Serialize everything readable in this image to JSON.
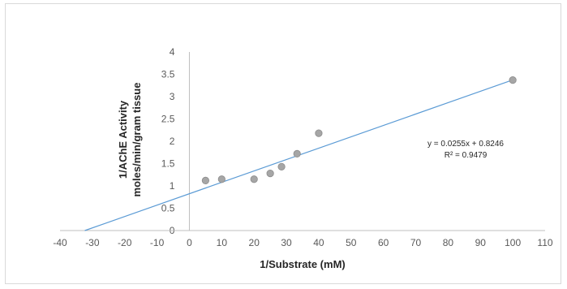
{
  "chart_data": {
    "type": "scatter",
    "title": "",
    "xlabel": "1/Substrate (mM)",
    "ylabel_lines": [
      "1/AChE Activity",
      "moles/min/gram tissue"
    ],
    "xlim": [
      -40,
      110
    ],
    "ylim": [
      0,
      4
    ],
    "x_ticks": [
      -40,
      -30,
      -20,
      -10,
      0,
      10,
      20,
      30,
      40,
      50,
      60,
      70,
      80,
      90,
      100,
      110
    ],
    "y_ticks": [
      0,
      0.5,
      1,
      1.5,
      2,
      2.5,
      3,
      3.5,
      4
    ],
    "series": [
      {
        "points": [
          {
            "x": 5,
            "y": 1.12
          },
          {
            "x": 10,
            "y": 1.15
          },
          {
            "x": 20,
            "y": 1.15
          },
          {
            "x": 25,
            "y": 1.28
          },
          {
            "x": 28.5,
            "y": 1.43
          },
          {
            "x": 33.3,
            "y": 1.72
          },
          {
            "x": 40,
            "y": 2.18
          },
          {
            "x": 100,
            "y": 3.37
          }
        ]
      }
    ],
    "trendline": {
      "slope": 0.0255,
      "intercept": 0.8246,
      "equation": "y = 0.0255x + 0.8246",
      "r_squared": "R² = 0.9479"
    },
    "grid": false,
    "legend": "none",
    "colors": {
      "marker_fill": "#a6a6a6",
      "marker_stroke": "#8c8c8c",
      "trendline": "#5b9bd5",
      "axis": "#bfbfbf"
    }
  }
}
